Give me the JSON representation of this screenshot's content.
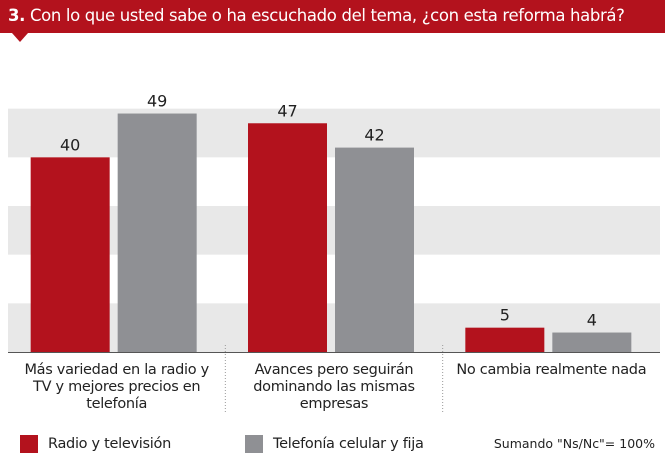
{
  "header": {
    "number": "3.",
    "question": "Con lo que usted sabe o ha escuchado del tema, ¿con esta reforma habrá?"
  },
  "colors": {
    "header_bg": "#b3121d",
    "series_1": "#b3121d",
    "series_2": "#8f9094",
    "band_shade": "#e8e8e8"
  },
  "chart_data": {
    "type": "bar",
    "categories": [
      [
        "Más variedad en la radio y",
        "TV y mejores precios en",
        "telefonía"
      ],
      [
        "Avances pero seguirán",
        "dominando las mismas",
        "empresas"
      ],
      [
        "No cambia realmente nada"
      ]
    ],
    "series": [
      {
        "name": "Radio y televisión",
        "color": "#b3121d",
        "values": [
          40,
          47,
          5
        ]
      },
      {
        "name": "Telefonía celular y fija",
        "color": "#8f9094",
        "values": [
          49,
          42,
          4
        ]
      }
    ],
    "ylim": [
      0,
      60
    ],
    "grid": "horizontal bands",
    "legend_position": "bottom"
  },
  "legend": {
    "items": [
      "Radio y televisión",
      "Telefonía celular y fija"
    ],
    "note": "Sumando \"Ns/Nc\"= 100%"
  }
}
